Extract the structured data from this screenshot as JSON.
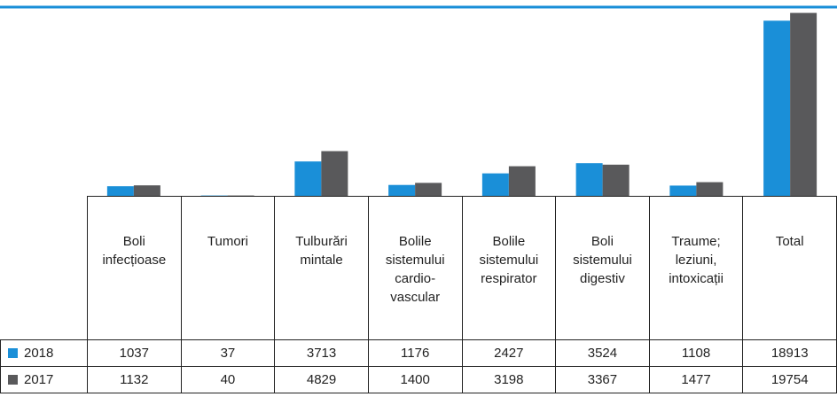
{
  "chart_data": {
    "type": "bar",
    "categories": [
      "Boli\ninfecțioase",
      "Tumori",
      "Tulburări\nmintale",
      "Bolile\nsistemului\ncardio-\nvascular",
      "Bolile\nsistemului\nrespirator",
      "Boli\nsistemului\ndigestiv",
      "Traume;\nleziuni,\nintoxicații",
      "Total"
    ],
    "series": [
      {
        "name": "2018",
        "color": "#1a8fd8",
        "values": [
          1037,
          37,
          3713,
          1176,
          2427,
          3524,
          1108,
          18913
        ]
      },
      {
        "name": "2017",
        "color": "#59595b",
        "values": [
          1132,
          40,
          4829,
          1400,
          3198,
          3367,
          1477,
          19754
        ]
      }
    ],
    "ylim": [
      0,
      20000
    ]
  }
}
